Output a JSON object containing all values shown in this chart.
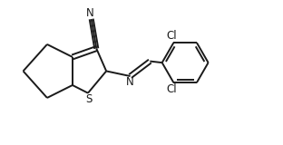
{
  "bg_color": "#ffffff",
  "line_color": "#1a1a1a",
  "line_width": 1.4,
  "text_color": "#1a1a1a",
  "font_size": 8.5,
  "S_label": "S",
  "N_imine_label": "N",
  "N_cn_label": "N",
  "Cl1_label": "Cl",
  "Cl2_label": "Cl",
  "figw": 3.12,
  "figh": 1.6,
  "dpi": 100,
  "xlim": [
    0,
    10
  ],
  "ylim": [
    0,
    5.1
  ]
}
